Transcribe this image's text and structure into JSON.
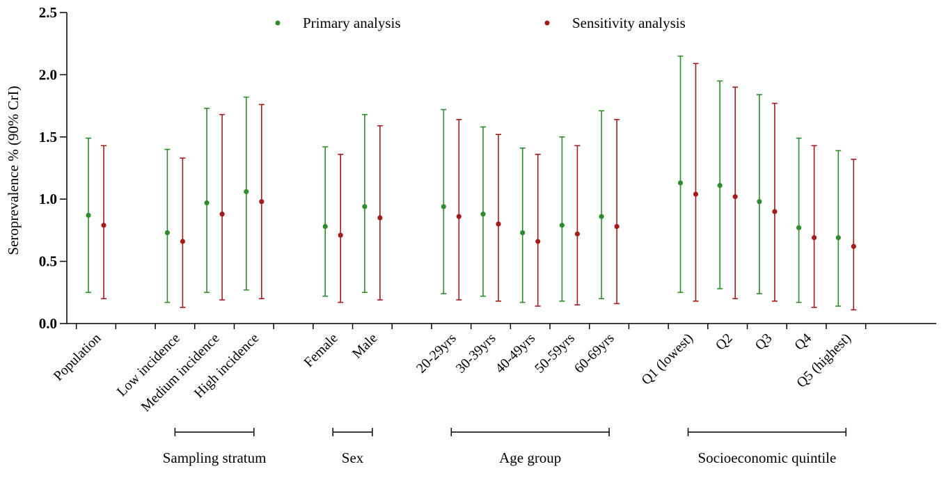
{
  "chart_data": {
    "type": "scatter",
    "ylabel": "Seroprevalence % (90% CrI)",
    "ylim": [
      0,
      2.5
    ],
    "yticks": [
      "0.0",
      "0.5",
      "1.0",
      "1.5",
      "2.0",
      "2.5"
    ],
    "categories": [
      "Population",
      "Low incidence",
      "Medium incidence",
      "High incidence",
      "Female",
      "Male",
      "20-29yrs",
      "30-39yrs",
      "40-49yrs",
      "50-59yrs",
      "60-69yrs",
      "Q1 (lowest)",
      "Q2",
      "Q3",
      "Q4",
      "Q5 (highest)"
    ],
    "slots": [
      0,
      2,
      3,
      4,
      6,
      7,
      9,
      10,
      11,
      12,
      13,
      15,
      16,
      17,
      18,
      19
    ],
    "groups": [
      {
        "label": "Sampling stratum",
        "from": 1,
        "to": 3
      },
      {
        "label": "Sex",
        "from": 4,
        "to": 5
      },
      {
        "label": "Age group",
        "from": 6,
        "to": 10
      },
      {
        "label": "Socioeconomic quintile",
        "from": 11,
        "to": 15
      }
    ],
    "legend_position": "top",
    "series": [
      {
        "name": "Primary analysis",
        "color": "#2e8b2e",
        "values": [
          0.87,
          0.73,
          0.97,
          1.06,
          0.78,
          0.94,
          0.94,
          0.88,
          0.73,
          0.79,
          0.86,
          1.13,
          1.11,
          0.98,
          0.77,
          0.69
        ],
        "lower": [
          0.25,
          0.17,
          0.25,
          0.27,
          0.22,
          0.25,
          0.24,
          0.22,
          0.17,
          0.18,
          0.2,
          0.25,
          0.28,
          0.24,
          0.17,
          0.14
        ],
        "upper": [
          1.49,
          1.4,
          1.73,
          1.82,
          1.42,
          1.68,
          1.72,
          1.58,
          1.41,
          1.5,
          1.71,
          2.15,
          1.95,
          1.84,
          1.49,
          1.39
        ]
      },
      {
        "name": "Sensitivity analysis",
        "color": "#a31c1c",
        "values": [
          0.79,
          0.66,
          0.88,
          0.98,
          0.71,
          0.85,
          0.86,
          0.8,
          0.66,
          0.72,
          0.78,
          1.04,
          1.02,
          0.9,
          0.69,
          0.62
        ],
        "lower": [
          0.2,
          0.13,
          0.19,
          0.2,
          0.17,
          0.19,
          0.19,
          0.18,
          0.14,
          0.15,
          0.16,
          0.18,
          0.2,
          0.18,
          0.13,
          0.11
        ],
        "upper": [
          1.43,
          1.33,
          1.68,
          1.76,
          1.36,
          1.59,
          1.64,
          1.52,
          1.36,
          1.43,
          1.64,
          2.09,
          1.9,
          1.77,
          1.43,
          1.32
        ]
      }
    ]
  }
}
